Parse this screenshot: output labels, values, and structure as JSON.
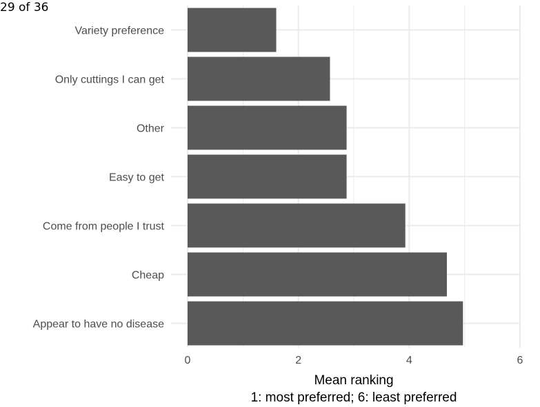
{
  "page_counter": "29 of 36",
  "chart_data": {
    "type": "bar",
    "orientation": "horizontal",
    "categories": [
      "Variety preference",
      "Only cuttings I can get",
      "Other",
      "Easy to get",
      "Come from people I trust",
      "Cheap",
      "Appear to have no disease"
    ],
    "values": [
      1.6,
      2.57,
      2.87,
      2.87,
      3.93,
      4.68,
      4.97
    ],
    "title": "",
    "xlabel": "Mean ranking",
    "xlabel_line2": "1: most preferred; 6: least preferred",
    "ylabel": "",
    "xlim": [
      0,
      6
    ],
    "xticks": [
      0,
      2,
      4,
      6
    ],
    "grid": true,
    "bar_color": "#595959",
    "grid_color": "#ebebeb"
  }
}
